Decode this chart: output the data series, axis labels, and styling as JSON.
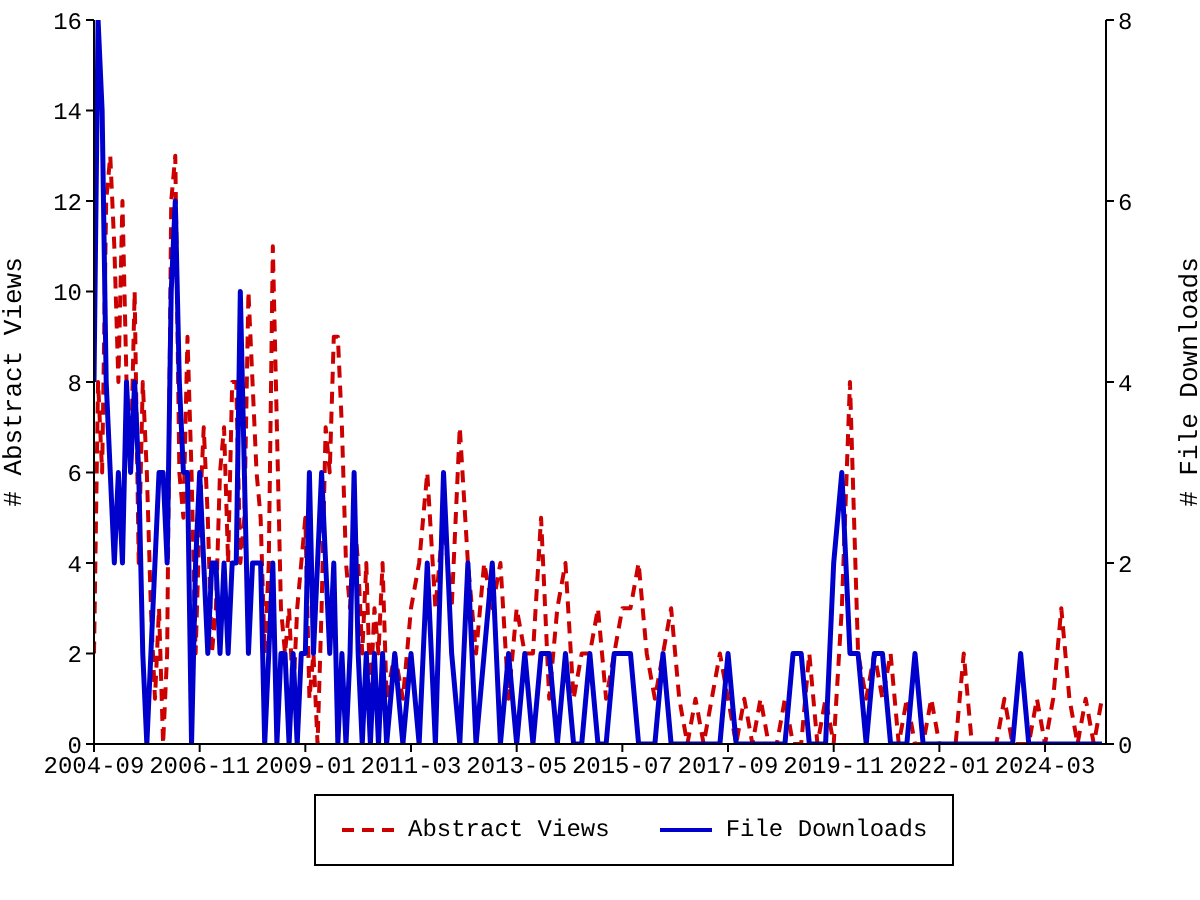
{
  "chart_data": {
    "type": "line",
    "ylabel": "# Abstract Views",
    "y2label": "# File Downloads",
    "legend": "bottom",
    "x": [
      "2004-09",
      "2004-10",
      "2004-11",
      "2004-12",
      "2005-01",
      "2005-02",
      "2005-03",
      "2005-04",
      "2005-05",
      "2005-06",
      "2005-07",
      "2005-08",
      "2005-09",
      "2005-10",
      "2005-11",
      "2005-12",
      "2006-01",
      "2006-02",
      "2006-03",
      "2006-04",
      "2006-05",
      "2006-06",
      "2006-07",
      "2006-08",
      "2006-09",
      "2006-10",
      "2006-11",
      "2006-12",
      "2007-01",
      "2007-02",
      "2007-03",
      "2007-04",
      "2007-05",
      "2007-06",
      "2007-07",
      "2007-08",
      "2007-09",
      "2007-10",
      "2007-11",
      "2007-12",
      "2008-01",
      "2008-02",
      "2008-03",
      "2008-04",
      "2008-05",
      "2008-06",
      "2008-07",
      "2008-08",
      "2008-09",
      "2008-10",
      "2008-11",
      "2008-12",
      "2009-01",
      "2009-02",
      "2009-03",
      "2009-04",
      "2009-05",
      "2009-06",
      "2009-07",
      "2009-08",
      "2009-09",
      "2009-10",
      "2009-11",
      "2009-12",
      "2010-01",
      "2010-02",
      "2010-03",
      "2010-04",
      "2010-05",
      "2010-06",
      "2010-07",
      "2010-08",
      "2010-09",
      "2010-11",
      "2011-01",
      "2011-03",
      "2011-05",
      "2011-07",
      "2011-09",
      "2011-11",
      "2012-01",
      "2012-03",
      "2012-05",
      "2012-07",
      "2012-09",
      "2012-11",
      "2013-01",
      "2013-03",
      "2013-05",
      "2013-07",
      "2013-09",
      "2013-11",
      "2014-01",
      "2014-03",
      "2014-05",
      "2014-07",
      "2014-09",
      "2014-11",
      "2015-01",
      "2015-03",
      "2015-05",
      "2015-07",
      "2015-09",
      "2015-11",
      "2016-01",
      "2016-03",
      "2016-05",
      "2016-07",
      "2016-09",
      "2016-11",
      "2017-01",
      "2017-03",
      "2017-05",
      "2017-07",
      "2017-09",
      "2017-11",
      "2018-01",
      "2018-03",
      "2018-05",
      "2018-07",
      "2018-09",
      "2018-11",
      "2019-01",
      "2019-03",
      "2019-05",
      "2019-07",
      "2019-09",
      "2019-11",
      "2020-01",
      "2020-03",
      "2020-05",
      "2020-07",
      "2020-09",
      "2020-11",
      "2021-01",
      "2021-03",
      "2021-05",
      "2021-07",
      "2021-09",
      "2021-11",
      "2022-01",
      "2022-03",
      "2022-05",
      "2022-07",
      "2022-09",
      "2022-11",
      "2023-01",
      "2023-03",
      "2023-05",
      "2023-07",
      "2023-09",
      "2023-11",
      "2024-01",
      "2024-03",
      "2024-05",
      "2024-07",
      "2024-09",
      "2024-11",
      "2025-01",
      "2025-03",
      "2025-05"
    ],
    "series": [
      {
        "name": "Abstract Views",
        "color": "#cc0000",
        "line_style": "dashed",
        "values": [
          2,
          8,
          6,
          12,
          13,
          11,
          8,
          12,
          8,
          6,
          10,
          4,
          8,
          6,
          3,
          1,
          3,
          0,
          2,
          12,
          13,
          6,
          5,
          9,
          6,
          2,
          5,
          7,
          5,
          2,
          3,
          6,
          7,
          4,
          8,
          8,
          4,
          5,
          10,
          8,
          6,
          5,
          2,
          4,
          11,
          7,
          3,
          2,
          3,
          1,
          3,
          4,
          5,
          1,
          2,
          0,
          3,
          7,
          6,
          9,
          9,
          7,
          4,
          3,
          5,
          4,
          2,
          4,
          1,
          3,
          2,
          4,
          1,
          2,
          1,
          3,
          4,
          6,
          3,
          5,
          3,
          7,
          4,
          2,
          4,
          3,
          4,
          1,
          3,
          2,
          2,
          5,
          1,
          3,
          4,
          1,
          2,
          2,
          3,
          1,
          2,
          3,
          3,
          4,
          2,
          1,
          2,
          3,
          1,
          0,
          1,
          0,
          1,
          2,
          1,
          0,
          1,
          0,
          1,
          0,
          0,
          1,
          0,
          0,
          2,
          0,
          1,
          0,
          3,
          8,
          2,
          1,
          2,
          1,
          2,
          0,
          1,
          0,
          0,
          1,
          0,
          0,
          0,
          2,
          0,
          0,
          0,
          0,
          1,
          0,
          0,
          0,
          1,
          0,
          1,
          3,
          1,
          0,
          1,
          0,
          1
        ]
      },
      {
        "name": "File Downloads",
        "color": "#0000cc",
        "line_style": "solid",
        "axis": "y2",
        "values": [
          4,
          8,
          7,
          4,
          3,
          2,
          3,
          2,
          4,
          3,
          4,
          3,
          1,
          0,
          1,
          2,
          3,
          3,
          2,
          5,
          6,
          4,
          3,
          3,
          0,
          2,
          3,
          2,
          1,
          2,
          2,
          1,
          2,
          1,
          2,
          2,
          5,
          3,
          1,
          2,
          2,
          2,
          0,
          1,
          2,
          0,
          1,
          1,
          0,
          1,
          0,
          1,
          1,
          3,
          1,
          2,
          3,
          2,
          1,
          2,
          0,
          1,
          0,
          1,
          3,
          1,
          0,
          1,
          0,
          1,
          0,
          1,
          0,
          1,
          0,
          1,
          0,
          2,
          0,
          3,
          1,
          0,
          2,
          0,
          1,
          2,
          0,
          1,
          0,
          1,
          0,
          1,
          1,
          0,
          1,
          0,
          0,
          1,
          0,
          0,
          1,
          1,
          1,
          0,
          0,
          0,
          1,
          0,
          0,
          0,
          0,
          0,
          0,
          0,
          1,
          0,
          0,
          0,
          0,
          0,
          0,
          0,
          1,
          1,
          0,
          0,
          0,
          2,
          3,
          1,
          1,
          0,
          1,
          1,
          0,
          0,
          0,
          1,
          0,
          0,
          0,
          0,
          0,
          0,
          0,
          0,
          0,
          0,
          0,
          0,
          1,
          0,
          0,
          0,
          0,
          0,
          0,
          0,
          0,
          0,
          0
        ]
      }
    ],
    "xlim": [
      "2004-09",
      "2025-06"
    ],
    "xticks": [
      "2004-09",
      "2006-11",
      "2009-01",
      "2011-03",
      "2013-05",
      "2015-07",
      "2017-09",
      "2019-11",
      "2022-01",
      "2024-03"
    ],
    "ylim": [
      0,
      16
    ],
    "yticks": [
      0,
      2,
      4,
      6,
      8,
      10,
      12,
      14,
      16
    ],
    "y2lim": [
      0,
      8
    ],
    "y2ticks": [
      0,
      2,
      4,
      6,
      8
    ]
  }
}
